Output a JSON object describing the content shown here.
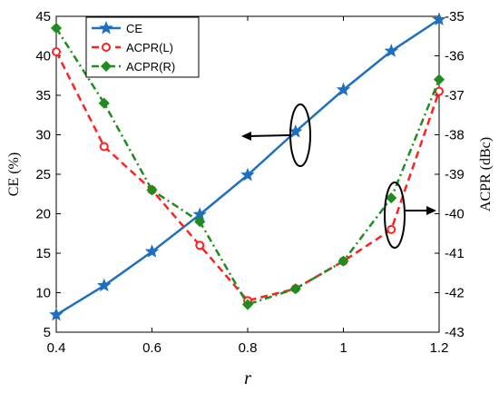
{
  "chart_data": {
    "type": "line",
    "xlabel": "r",
    "ylabel_left": "CE (%)",
    "ylabel_right": "ACPR (dBc)",
    "xlim": [
      0.4,
      1.2
    ],
    "ylim_left": [
      5,
      45
    ],
    "ylim_right": [
      -43,
      -35
    ],
    "x_ticks": [
      0.4,
      0.6,
      0.8,
      1.0,
      1.2
    ],
    "x_tick_labels": [
      "0.4",
      "0.6",
      "0.8",
      "1",
      "1.2"
    ],
    "y_left_ticks": [
      5,
      10,
      15,
      20,
      25,
      30,
      35,
      40,
      45
    ],
    "y_left_tick_labels": [
      "5",
      "10",
      "15",
      "20",
      "25",
      "30",
      "35",
      "40",
      "45"
    ],
    "y_right_ticks": [
      -43,
      -42,
      -41,
      -40,
      -39,
      -38,
      -37,
      -36,
      -35
    ],
    "y_right_tick_labels": [
      "-43",
      "-42",
      "-41",
      "-40",
      "-39",
      "-38",
      "-37",
      "-36",
      "-35"
    ],
    "grid": false,
    "legend_position": "top-left",
    "x": [
      0.4,
      0.5,
      0.6,
      0.7,
      0.8,
      0.9,
      1.0,
      1.1,
      1.2
    ],
    "series": [
      {
        "name": "CE",
        "axis": "left",
        "values": [
          7.2,
          10.9,
          15.2,
          19.9,
          24.9,
          30.4,
          35.7,
          40.6,
          44.6
        ],
        "color": "#1f6fc0",
        "style": "solid",
        "marker": "star"
      },
      {
        "name": "ACPR(L)",
        "axis": "right",
        "values": [
          -35.9,
          -38.3,
          -39.4,
          -40.8,
          -42.2,
          -41.9,
          -41.2,
          -40.4,
          -36.9
        ],
        "color": "#ff2020",
        "style": "dashed",
        "marker": "circle"
      },
      {
        "name": "ACPR(R)",
        "axis": "right",
        "values": [
          -35.3,
          -37.2,
          -39.4,
          -40.2,
          -42.3,
          -41.9,
          -41.2,
          -39.6,
          -36.6
        ],
        "color": "#1e8c1e",
        "style": "dashdot",
        "marker": "diamond"
      }
    ]
  }
}
